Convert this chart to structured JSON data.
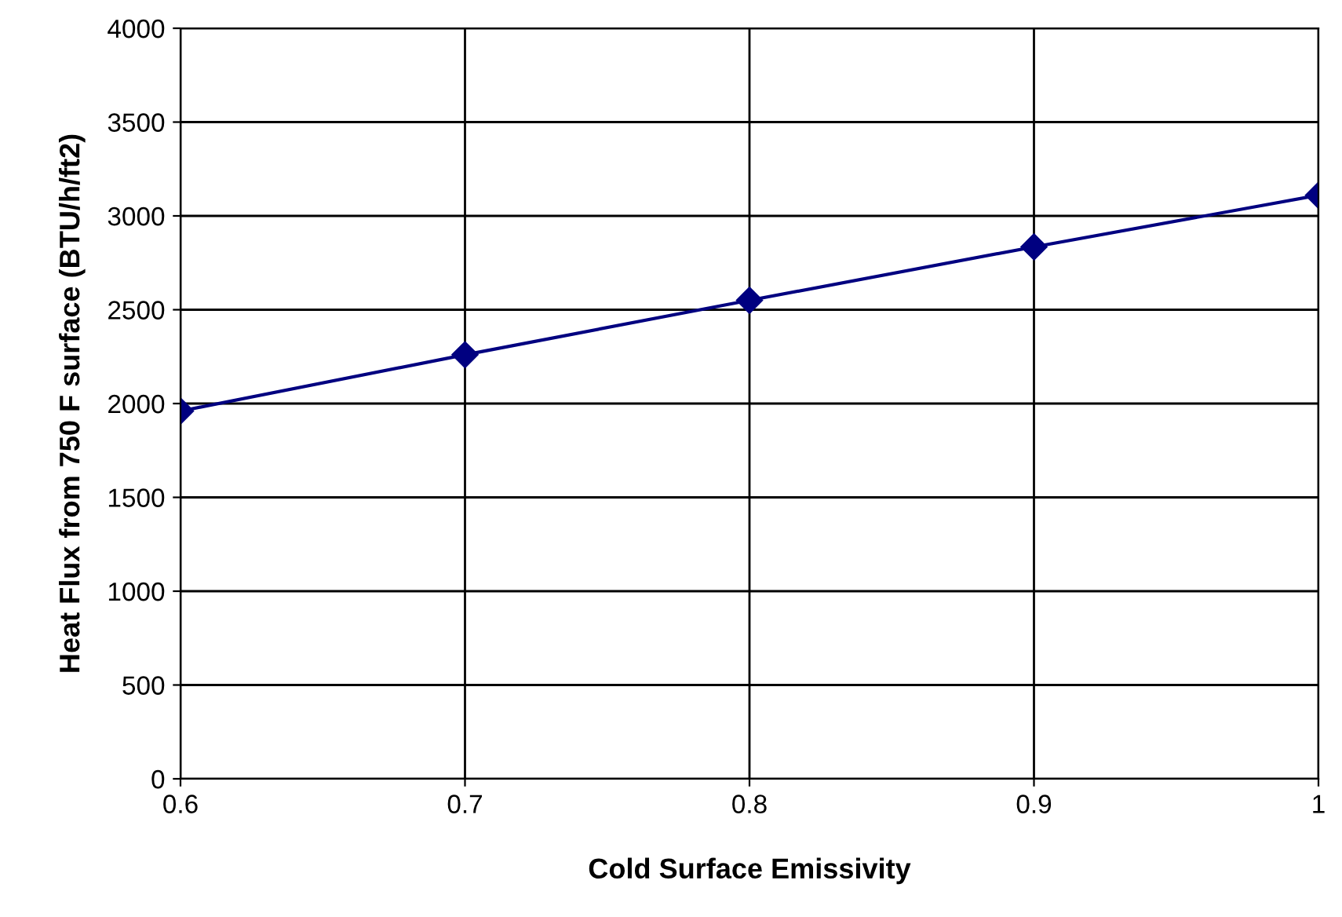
{
  "chart_data": {
    "type": "line",
    "xlabel": "Cold Surface Emissivity",
    "ylabel": "Heat Flux from 750 F surface (BTU/h/ft2)",
    "x": [
      0.6,
      0.7,
      0.8,
      0.9,
      1
    ],
    "series": [
      {
        "color": "#000080",
        "values": [
          1960,
          2260,
          2550,
          2835,
          3110
        ]
      }
    ],
    "xlim": [
      0.6,
      1
    ],
    "ylim": [
      0,
      4000
    ],
    "xticks": [
      0.6,
      0.7,
      0.8,
      0.9,
      1
    ],
    "yticks": [
      0,
      500,
      1000,
      1500,
      2000,
      2500,
      3000,
      3500,
      4000
    ],
    "grid": true,
    "marker": "diamond",
    "line_style": "solid"
  }
}
